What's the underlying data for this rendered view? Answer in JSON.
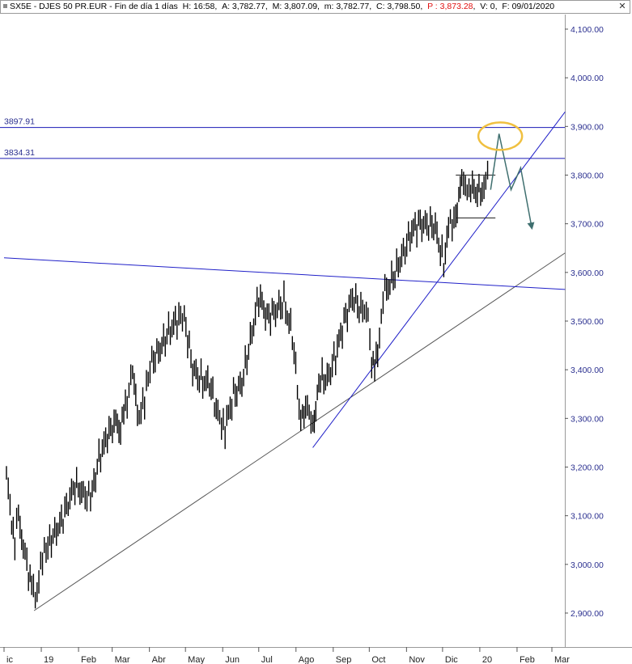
{
  "header": {
    "symbol": "SX5E - DJES 50 PR.EUR",
    "period": "Fin de día 1 días",
    "h": "H: 16:58",
    "a": "A: 3,782.77",
    "m": "M: 3,807.09",
    "mn": "m: 3,782.77",
    "c": "C: 3,798.50",
    "p": "P : 3,873.28",
    "v": "V: 0",
    "f": "F: 09/01/2020",
    "close_icon": "close-x-icon"
  },
  "colors": {
    "axis_text": "#2a2f8f",
    "level_line": "#1a1ab4",
    "trend_blue": "#2020c8",
    "trend_gray": "#555555",
    "price": "#000000",
    "projection": "#3f6f6f",
    "highlight": "#f0c040"
  },
  "chart_data": {
    "type": "candlestick",
    "title": "SX5E - DJES 50 PR.EUR",
    "ylim": [
      2870,
      4140
    ],
    "y_ticks": [
      "4,100.00",
      "4,000.00",
      "3,900.00",
      "3,800.00",
      "3,700.00",
      "3,600.00",
      "3,500.00",
      "3,400.00",
      "3,300.00",
      "3,200.00",
      "3,100.00",
      "3,000.00",
      "2,900.00"
    ],
    "y_tick_values": [
      4100,
      4000,
      3900,
      3800,
      3700,
      3600,
      3500,
      3400,
      3300,
      3200,
      3100,
      3000,
      2900
    ],
    "x_ticks": [
      "ic",
      "19",
      "Feb",
      "Mar",
      "Abr",
      "May",
      "Jun",
      "Jul",
      "Ago",
      "Sep",
      "Oct",
      "Nov",
      "Dic",
      "20",
      "Feb",
      "Mar"
    ],
    "x_tick_dates": [
      "2018-12-01",
      "2019-01-01",
      "2019-02-01",
      "2019-03-01",
      "2019-04-01",
      "2019-05-01",
      "2019-06-01",
      "2019-07-01",
      "2019-08-01",
      "2019-09-01",
      "2019-10-01",
      "2019-11-01",
      "2019-12-01",
      "2020-01-01",
      "2020-02-01",
      "2020-03-01"
    ],
    "close_series": [
      [
        "2018-12-03",
        3180
      ],
      [
        "2018-12-06",
        3120
      ],
      [
        "2018-12-10",
        3040
      ],
      [
        "2018-12-13",
        3110
      ],
      [
        "2018-12-17",
        3030
      ],
      [
        "2018-12-20",
        3000
      ],
      [
        "2018-12-24",
        2960
      ],
      [
        "2018-12-27",
        2930
      ],
      [
        "2019-01-02",
        3010
      ],
      [
        "2019-01-08",
        3050
      ],
      [
        "2019-01-15",
        3070
      ],
      [
        "2019-01-22",
        3120
      ],
      [
        "2019-01-29",
        3160
      ],
      [
        "2019-02-05",
        3150
      ],
      [
        "2019-02-11",
        3130
      ],
      [
        "2019-02-18",
        3220
      ],
      [
        "2019-02-25",
        3260
      ],
      [
        "2019-03-04",
        3300
      ],
      [
        "2019-03-08",
        3280
      ],
      [
        "2019-03-12",
        3320
      ],
      [
        "2019-03-18",
        3400
      ],
      [
        "2019-03-22",
        3300
      ],
      [
        "2019-03-28",
        3340
      ],
      [
        "2019-04-03",
        3420
      ],
      [
        "2019-04-10",
        3440
      ],
      [
        "2019-04-17",
        3480
      ],
      [
        "2019-04-24",
        3500
      ],
      [
        "2019-04-30",
        3510
      ],
      [
        "2019-05-07",
        3400
      ],
      [
        "2019-05-14",
        3380
      ],
      [
        "2019-05-21",
        3370
      ],
      [
        "2019-05-28",
        3310
      ],
      [
        "2019-06-03",
        3280
      ],
      [
        "2019-06-10",
        3350
      ],
      [
        "2019-06-17",
        3370
      ],
      [
        "2019-06-24",
        3460
      ],
      [
        "2019-07-01",
        3550
      ],
      [
        "2019-07-08",
        3510
      ],
      [
        "2019-07-15",
        3520
      ],
      [
        "2019-07-22",
        3540
      ],
      [
        "2019-07-29",
        3470
      ],
      [
        "2019-08-05",
        3290
      ],
      [
        "2019-08-09",
        3340
      ],
      [
        "2019-08-15",
        3270
      ],
      [
        "2019-08-20",
        3380
      ],
      [
        "2019-08-27",
        3380
      ],
      [
        "2019-09-03",
        3430
      ],
      [
        "2019-09-10",
        3500
      ],
      [
        "2019-09-17",
        3550
      ],
      [
        "2019-09-24",
        3520
      ],
      [
        "2019-09-30",
        3530
      ],
      [
        "2019-10-03",
        3400
      ],
      [
        "2019-10-08",
        3440
      ],
      [
        "2019-10-14",
        3560
      ],
      [
        "2019-10-21",
        3590
      ],
      [
        "2019-10-28",
        3630
      ],
      [
        "2019-11-04",
        3680
      ],
      [
        "2019-11-11",
        3700
      ],
      [
        "2019-11-18",
        3700
      ],
      [
        "2019-11-25",
        3690
      ],
      [
        "2019-12-02",
        3620
      ],
      [
        "2019-12-06",
        3690
      ],
      [
        "2019-12-12",
        3720
      ],
      [
        "2019-12-17",
        3780
      ],
      [
        "2019-12-23",
        3780
      ],
      [
        "2019-12-30",
        3760
      ],
      [
        "2020-01-03",
        3775
      ],
      [
        "2020-01-09",
        3798.5
      ]
    ],
    "levels": [
      {
        "label": "3897.91",
        "value": 3897.91
      },
      {
        "label": "3834.31",
        "value": 3834.31
      }
    ],
    "trendlines": [
      {
        "name": "long-term-support",
        "color": "gray",
        "from": [
          "2018-12-26",
          2905
        ],
        "to": [
          "2020-03-12",
          3640
        ]
      },
      {
        "name": "short-term-support",
        "color": "blue",
        "from": [
          "2019-08-15",
          3240
        ],
        "to": [
          "2020-03-12",
          3930
        ]
      },
      {
        "name": "resistance",
        "color": "blue",
        "from": [
          "2018-12-01",
          3630
        ],
        "to": [
          "2020-03-12",
          3565
        ]
      }
    ],
    "consolidation_box": {
      "from": "2019-12-12",
      "to": "2020-01-14",
      "top": 3800,
      "bottom": 3712
    },
    "projection_path": [
      [
        "2020-01-10",
        3770
      ],
      [
        "2020-01-17",
        3885
      ],
      [
        "2020-01-27",
        3770
      ],
      [
        "2020-02-04",
        3815
      ],
      [
        "2020-02-13",
        3695
      ]
    ],
    "highlight_ellipse": {
      "center": [
        "2020-01-18",
        3880
      ]
    }
  }
}
